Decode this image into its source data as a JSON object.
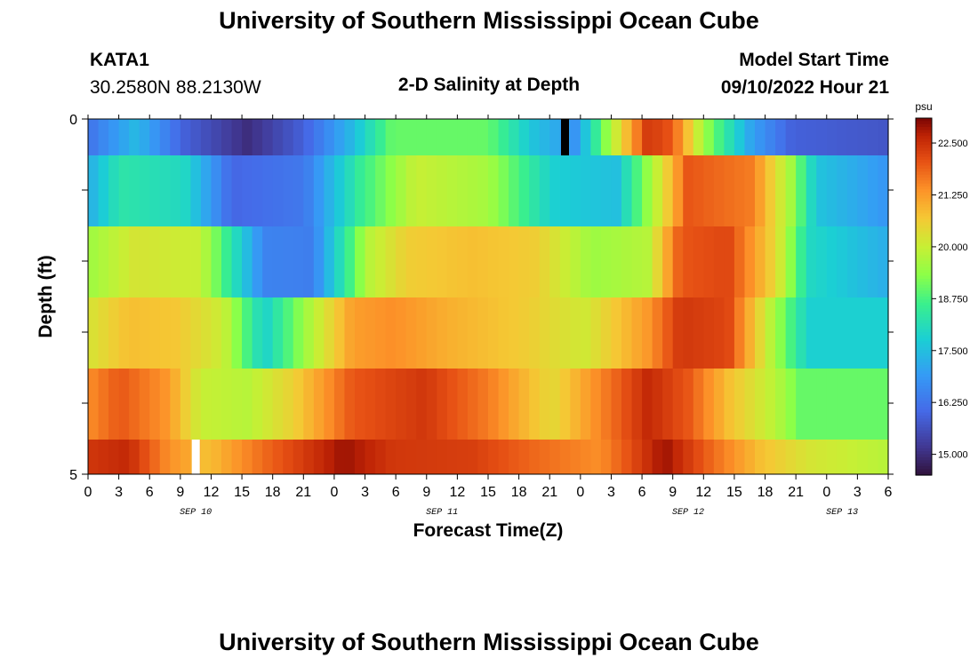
{
  "page": {
    "title": "University of Southern Mississippi Ocean Cube",
    "footer_title": "University of Southern Mississippi Ocean Cube",
    "station_id": "KATA1",
    "station_coords": "30.2580N  88.2130W",
    "plot_title": "2-D Salinity at Depth",
    "model_start_label": "Model Start Time",
    "model_start_value": "09/10/2022 Hour 21"
  },
  "chart_data": {
    "type": "heatmap",
    "title": "2-D Salinity at Depth",
    "xlabel": "Forecast Time(Z)",
    "ylabel": "Depth (ft)",
    "x_tick_labels": [
      "0",
      "3",
      "6",
      "9",
      "12",
      "15",
      "18",
      "21",
      "0",
      "3",
      "6",
      "9",
      "12",
      "15",
      "18",
      "21",
      "0",
      "3",
      "6",
      "9",
      "12",
      "15",
      "18",
      "21",
      "0",
      "3",
      "6"
    ],
    "day_labels": [
      {
        "label": "SEP 10",
        "hour_index": 3.5
      },
      {
        "label": "SEP 11",
        "hour_index": 11.5
      },
      {
        "label": "SEP 12",
        "hour_index": 19.5
      },
      {
        "label": "SEP 13",
        "hour_index": 24.5
      }
    ],
    "y_tick_labels": [
      "0",
      "5"
    ],
    "ylim": [
      0,
      5
    ],
    "colorbar": {
      "unit": "psu",
      "min": 14.5,
      "max": 23.1,
      "ticks": [
        "15.000",
        "16.250",
        "17.500",
        "18.750",
        "20.000",
        "21.250",
        "22.500"
      ]
    },
    "columns": 78,
    "bands": [
      {
        "depth": "0-0.5",
        "keys": [
          [
            0,
            16.2
          ],
          [
            6,
            17.4
          ],
          [
            12,
            15.9
          ],
          [
            20,
            15.0
          ],
          [
            27,
            15.9
          ],
          [
            33,
            17.4
          ],
          [
            38,
            19.0
          ],
          [
            50,
            19.0
          ],
          [
            56,
            17.5
          ],
          [
            61,
            16.8
          ],
          [
            65,
            19.5
          ],
          [
            70,
            22.4
          ],
          [
            73,
            22.0
          ],
          [
            77,
            19.5
          ],
          [
            83,
            17.0
          ],
          [
            88,
            15.9
          ],
          [
            100,
            15.7
          ]
        ]
      },
      {
        "depth": "0.5-1.5",
        "keys": [
          [
            0,
            17.2
          ],
          [
            4,
            18.3
          ],
          [
            12,
            18.0
          ],
          [
            18,
            16.0
          ],
          [
            27,
            16.3
          ],
          [
            34,
            18.5
          ],
          [
            41,
            20.0
          ],
          [
            50,
            19.6
          ],
          [
            58,
            17.8
          ],
          [
            66,
            17.5
          ],
          [
            72,
            20.4
          ],
          [
            75,
            22.0
          ],
          [
            83,
            21.6
          ],
          [
            88,
            19.5
          ],
          [
            91,
            17.6
          ],
          [
            100,
            16.8
          ]
        ]
      },
      {
        "depth": "1.5-2.5",
        "keys": [
          [
            0,
            19.5
          ],
          [
            6,
            20.2
          ],
          [
            14,
            20.0
          ],
          [
            22,
            16.5
          ],
          [
            28,
            16.4
          ],
          [
            35,
            19.8
          ],
          [
            40,
            20.6
          ],
          [
            48,
            20.8
          ],
          [
            56,
            20.6
          ],
          [
            63,
            19.5
          ],
          [
            70,
            19.8
          ],
          [
            74,
            22.0
          ],
          [
            80,
            22.2
          ],
          [
            86,
            20.4
          ],
          [
            90,
            18.0
          ],
          [
            100,
            17.2
          ]
        ]
      },
      {
        "depth": "2.5-3.5",
        "keys": [
          [
            0,
            20.2
          ],
          [
            5,
            20.8
          ],
          [
            11,
            20.7
          ],
          [
            17,
            20.0
          ],
          [
            22,
            17.8
          ],
          [
            28,
            19.8
          ],
          [
            33,
            21.2
          ],
          [
            38,
            21.4
          ],
          [
            45,
            21.0
          ],
          [
            55,
            20.6
          ],
          [
            62,
            20.1
          ],
          [
            70,
            21.3
          ],
          [
            74,
            22.4
          ],
          [
            80,
            22.2
          ],
          [
            86,
            19.5
          ],
          [
            90,
            17.8
          ],
          [
            100,
            17.8
          ]
        ]
      },
      {
        "depth": "3.5-4.5",
        "keys": [
          [
            0,
            21.4
          ],
          [
            4,
            22.0
          ],
          [
            10,
            21.3
          ],
          [
            14,
            20.0
          ],
          [
            20,
            19.8
          ],
          [
            26,
            20.6
          ],
          [
            33,
            22.0
          ],
          [
            42,
            22.4
          ],
          [
            50,
            21.6
          ],
          [
            58,
            20.4
          ],
          [
            64,
            21.5
          ],
          [
            70,
            22.6
          ],
          [
            75,
            22.0
          ],
          [
            80,
            20.8
          ],
          [
            86,
            19.8
          ],
          [
            89,
            19.0
          ],
          [
            100,
            19.0
          ]
        ]
      },
      {
        "depth": "4.5-5",
        "keys": [
          [
            0,
            22.4
          ],
          [
            5,
            22.6
          ],
          [
            10,
            21.4
          ],
          [
            15,
            20.8
          ],
          [
            22,
            21.8
          ],
          [
            32,
            22.9
          ],
          [
            38,
            22.4
          ],
          [
            48,
            22.3
          ],
          [
            56,
            21.8
          ],
          [
            64,
            21.4
          ],
          [
            72,
            22.9
          ],
          [
            78,
            21.8
          ],
          [
            84,
            20.8
          ],
          [
            90,
            20.2
          ],
          [
            100,
            19.8
          ]
        ]
      }
    ],
    "missing_cells": [
      {
        "band": 0,
        "hour": 15.5,
        "color": "#000000"
      },
      {
        "band": 5,
        "hour": 3.5,
        "color": "#ffffff"
      }
    ]
  }
}
